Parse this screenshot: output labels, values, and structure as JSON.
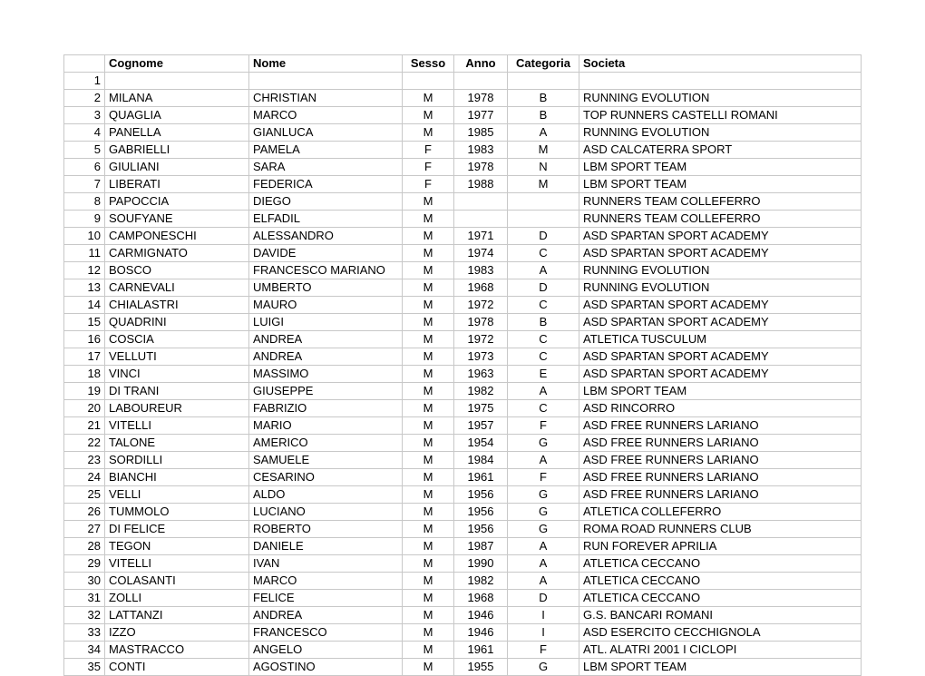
{
  "table": {
    "headers": {
      "num": "",
      "cognome": "Cognome",
      "nome": "Nome",
      "sesso": "Sesso",
      "anno": "Anno",
      "categoria": "Categoria",
      "societa": "Societa"
    },
    "rows": [
      {
        "n": "1",
        "cog": "",
        "nom": "",
        "ses": "",
        "ann": "",
        "cat": "",
        "soc": ""
      },
      {
        "n": "2",
        "cog": "MILANA",
        "nom": "CHRISTIAN",
        "ses": "M",
        "ann": "1978",
        "cat": "B",
        "soc": "RUNNING EVOLUTION"
      },
      {
        "n": "3",
        "cog": "QUAGLIA",
        "nom": "MARCO",
        "ses": "M",
        "ann": "1977",
        "cat": "B",
        "soc": "TOP RUNNERS CASTELLI ROMANI"
      },
      {
        "n": "4",
        "cog": "PANELLA",
        "nom": "GIANLUCA",
        "ses": "M",
        "ann": "1985",
        "cat": "A",
        "soc": "RUNNING EVOLUTION"
      },
      {
        "n": "5",
        "cog": "GABRIELLI",
        "nom": "PAMELA",
        "ses": "F",
        "ann": "1983",
        "cat": "M",
        "soc": "ASD CALCATERRA SPORT"
      },
      {
        "n": "6",
        "cog": "GIULIANI",
        "nom": "SARA",
        "ses": "F",
        "ann": "1978",
        "cat": "N",
        "soc": "LBM SPORT TEAM"
      },
      {
        "n": "7",
        "cog": "LIBERATI",
        "nom": "FEDERICA",
        "ses": "F",
        "ann": "1988",
        "cat": "M",
        "soc": "LBM SPORT TEAM"
      },
      {
        "n": "8",
        "cog": "PAPOCCIA",
        "nom": "DIEGO",
        "ses": "M",
        "ann": "",
        "cat": "",
        "soc": "RUNNERS TEAM COLLEFERRO"
      },
      {
        "n": "9",
        "cog": "SOUFYANE",
        "nom": "ELFADIL",
        "ses": "M",
        "ann": "",
        "cat": "",
        "soc": "RUNNERS TEAM COLLEFERRO"
      },
      {
        "n": "10",
        "cog": "CAMPONESCHI",
        "nom": "ALESSANDRO",
        "ses": "M",
        "ann": "1971",
        "cat": "D",
        "soc": "ASD SPARTAN SPORT ACADEMY"
      },
      {
        "n": "11",
        "cog": "CARMIGNATO",
        "nom": "DAVIDE",
        "ses": "M",
        "ann": "1974",
        "cat": "C",
        "soc": "ASD SPARTAN SPORT ACADEMY"
      },
      {
        "n": "12",
        "cog": "BOSCO",
        "nom": "FRANCESCO MARIANO",
        "ses": "M",
        "ann": "1983",
        "cat": "A",
        "soc": "RUNNING EVOLUTION"
      },
      {
        "n": "13",
        "cog": "CARNEVALI",
        "nom": "UMBERTO",
        "ses": "M",
        "ann": "1968",
        "cat": "D",
        "soc": "RUNNING EVOLUTION"
      },
      {
        "n": "14",
        "cog": "CHIALASTRI",
        "nom": "MAURO",
        "ses": "M",
        "ann": "1972",
        "cat": "C",
        "soc": "ASD SPARTAN SPORT ACADEMY"
      },
      {
        "n": "15",
        "cog": "QUADRINI",
        "nom": "LUIGI",
        "ses": "M",
        "ann": "1978",
        "cat": "B",
        "soc": "ASD SPARTAN SPORT ACADEMY"
      },
      {
        "n": "16",
        "cog": "COSCIA",
        "nom": "ANDREA",
        "ses": "M",
        "ann": "1972",
        "cat": "C",
        "soc": "ATLETICA TUSCULUM"
      },
      {
        "n": "17",
        "cog": "VELLUTI",
        "nom": "ANDREA",
        "ses": "M",
        "ann": "1973",
        "cat": "C",
        "soc": "ASD SPARTAN SPORT ACADEMY"
      },
      {
        "n": "18",
        "cog": "VINCI",
        "nom": "MASSIMO",
        "ses": "M",
        "ann": "1963",
        "cat": "E",
        "soc": "ASD SPARTAN SPORT ACADEMY"
      },
      {
        "n": "19",
        "cog": "DI TRANI",
        "nom": "GIUSEPPE",
        "ses": "M",
        "ann": "1982",
        "cat": "A",
        "soc": "LBM SPORT TEAM"
      },
      {
        "n": "20",
        "cog": "LABOUREUR",
        "nom": "FABRIZIO",
        "ses": "M",
        "ann": "1975",
        "cat": "C",
        "soc": "ASD RINCORRO"
      },
      {
        "n": "21",
        "cog": "VITELLI",
        "nom": "MARIO",
        "ses": "M",
        "ann": "1957",
        "cat": "F",
        "soc": "ASD FREE RUNNERS LARIANO"
      },
      {
        "n": "22",
        "cog": "TALONE",
        "nom": "AMERICO",
        "ses": "M",
        "ann": "1954",
        "cat": "G",
        "soc": "ASD FREE RUNNERS LARIANO"
      },
      {
        "n": "23",
        "cog": "SORDILLI",
        "nom": "SAMUELE",
        "ses": "M",
        "ann": "1984",
        "cat": "A",
        "soc": "ASD FREE RUNNERS LARIANO"
      },
      {
        "n": "24",
        "cog": "BIANCHI",
        "nom": "CESARINO",
        "ses": "M",
        "ann": "1961",
        "cat": "F",
        "soc": "ASD FREE RUNNERS LARIANO"
      },
      {
        "n": "25",
        "cog": "VELLI",
        "nom": "ALDO",
        "ses": "M",
        "ann": "1956",
        "cat": "G",
        "soc": "ASD FREE RUNNERS LARIANO"
      },
      {
        "n": "26",
        "cog": "TUMMOLO",
        "nom": "LUCIANO",
        "ses": "M",
        "ann": "1956",
        "cat": "G",
        "soc": "ATLETICA COLLEFERRO"
      },
      {
        "n": "27",
        "cog": "DI FELICE",
        "nom": "ROBERTO",
        "ses": "M",
        "ann": "1956",
        "cat": "G",
        "soc": "ROMA ROAD RUNNERS CLUB"
      },
      {
        "n": "28",
        "cog": "TEGON",
        "nom": "DANIELE",
        "ses": "M",
        "ann": "1987",
        "cat": "A",
        "soc": "RUN FOREVER APRILIA"
      },
      {
        "n": "29",
        "cog": "VITELLI",
        "nom": "IVAN",
        "ses": "M",
        "ann": "1990",
        "cat": "A",
        "soc": "ATLETICA CECCANO"
      },
      {
        "n": "30",
        "cog": "COLASANTI",
        "nom": "MARCO",
        "ses": "M",
        "ann": "1982",
        "cat": "A",
        "soc": "ATLETICA CECCANO"
      },
      {
        "n": "31",
        "cog": "ZOLLI",
        "nom": "FELICE",
        "ses": "M",
        "ann": "1968",
        "cat": "D",
        "soc": "ATLETICA CECCANO"
      },
      {
        "n": "32",
        "cog": "LATTANZI",
        "nom": "ANDREA",
        "ses": "M",
        "ann": "1946",
        "cat": "I",
        "soc": "G.S. BANCARI ROMANI"
      },
      {
        "n": "33",
        "cog": "IZZO",
        "nom": "FRANCESCO",
        "ses": "M",
        "ann": "1946",
        "cat": "I",
        "soc": "ASD ESERCITO CECCHIGNOLA"
      },
      {
        "n": "34",
        "cog": "MASTRACCO",
        "nom": "ANGELO",
        "ses": "M",
        "ann": "1961",
        "cat": "F",
        "soc": "ATL. ALATRI 2001 I CICLOPI"
      },
      {
        "n": "35",
        "cog": "CONTI",
        "nom": "AGOSTINO",
        "ses": "M",
        "ann": "1955",
        "cat": "G",
        "soc": "LBM SPORT TEAM"
      }
    ]
  },
  "style": {
    "border_color": "#c8c8c8",
    "background_color": "#ffffff",
    "text_color": "#000000",
    "font_size": 13,
    "header_font_weight": "bold"
  }
}
